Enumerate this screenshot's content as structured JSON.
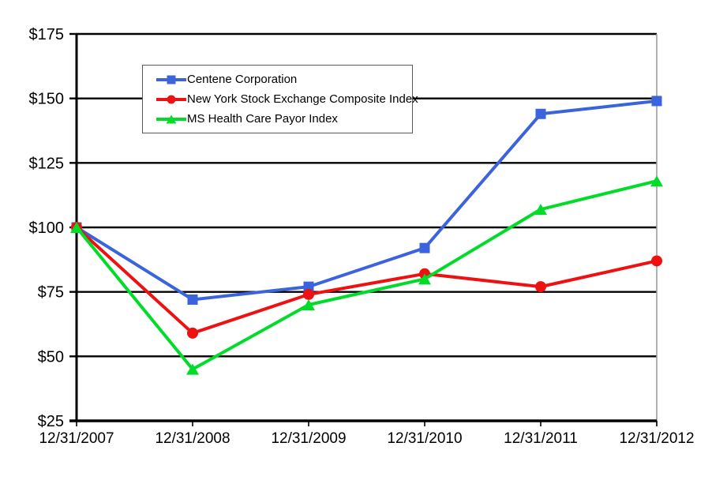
{
  "chart_data": {
    "type": "line",
    "x": [
      "12/31/2007",
      "12/31/2008",
      "12/31/2009",
      "12/31/2010",
      "12/31/2011",
      "12/31/2012"
    ],
    "series": [
      {
        "name": "Centene Corporation",
        "marker": "square",
        "color": "#3B63DC",
        "values": [
          100,
          72,
          77,
          92,
          144,
          149
        ]
      },
      {
        "name": "New York Stock Exchange Composite Index",
        "marker": "circle",
        "color": "#EE1111",
        "values": [
          100,
          59,
          74,
          82,
          77,
          87
        ]
      },
      {
        "name": "MS Health Care Payor Index",
        "marker": "triangle",
        "color": "#00DC28",
        "values": [
          100,
          45,
          70,
          80,
          107,
          118
        ]
      }
    ],
    "y_ticks": [
      25,
      50,
      75,
      100,
      125,
      150,
      175
    ],
    "y_tick_labels": [
      "$25",
      "$50",
      "$75",
      "$100",
      "$125",
      "$150",
      "$175"
    ],
    "ylim": [
      25,
      175
    ],
    "grid": "horizontal",
    "legend_position": "inside-top-left",
    "colors": {
      "axis": "#000000",
      "grid": "#000000",
      "right_border": "#9E9E9E",
      "legend_border": "#595959",
      "background": "#FFFFFF",
      "text": "#000000"
    }
  }
}
